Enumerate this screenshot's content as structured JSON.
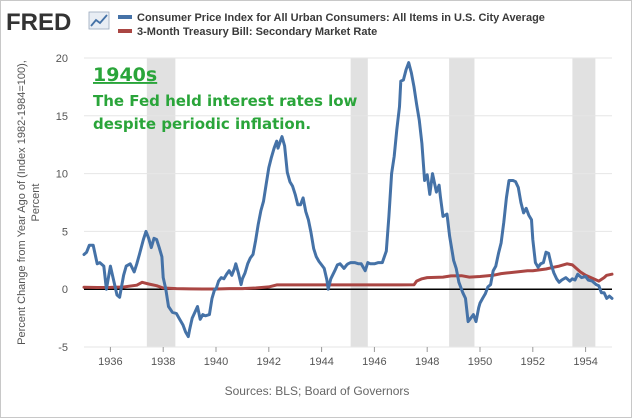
{
  "header": {
    "logo_text": "FRED",
    "logo_icon": "line-chart-icon"
  },
  "chart_data": {
    "type": "line",
    "title": "",
    "xlabel": "",
    "ylabel_lines": [
      "Percent Change from Year Ago of (Index 1982-1984=100),",
      "Percent"
    ],
    "xlim": [
      1935.0,
      1955.0
    ],
    "ylim": [
      -5,
      20
    ],
    "y_ticks": [
      -5,
      0,
      5,
      10,
      15,
      20
    ],
    "x_ticks": [
      {
        "value": 1936,
        "label": "1936"
      },
      {
        "value": 1938,
        "label": "1938"
      },
      {
        "value": 1940,
        "label": "1940"
      },
      {
        "value": 1942,
        "label": "1942"
      },
      {
        "value": 1944,
        "label": "1944"
      },
      {
        "value": 1946,
        "label": "1946"
      },
      {
        "value": 1948,
        "label": "1948"
      },
      {
        "value": 1950,
        "label": "1950"
      },
      {
        "value": 1952,
        "label": "1952"
      },
      {
        "value": 1954,
        "label": "1954"
      }
    ],
    "grid": true,
    "recessions": [
      [
        1937.38,
        1938.46
      ],
      [
        1945.1,
        1945.75
      ],
      [
        1948.83,
        1949.79
      ],
      [
        1953.5,
        1954.37
      ]
    ],
    "zero_line": 0,
    "series": [
      {
        "name": "Consumer Price Index for All Urban Consumers: All Items in U.S. City Average",
        "color": "#4572a7",
        "points": [
          [
            1935.0,
            3.0
          ],
          [
            1935.1,
            3.2
          ],
          [
            1935.2,
            3.8
          ],
          [
            1935.35,
            3.8
          ],
          [
            1935.5,
            2.2
          ],
          [
            1935.6,
            2.3
          ],
          [
            1935.75,
            2.0
          ],
          [
            1935.85,
            0.0
          ],
          [
            1936.0,
            2.0
          ],
          [
            1936.1,
            1.0
          ],
          [
            1936.25,
            -0.5
          ],
          [
            1936.35,
            -0.7
          ],
          [
            1936.5,
            1.2
          ],
          [
            1936.6,
            2.0
          ],
          [
            1936.75,
            2.2
          ],
          [
            1936.9,
            1.5
          ],
          [
            1937.0,
            2.2
          ],
          [
            1937.1,
            3.0
          ],
          [
            1937.25,
            4.3
          ],
          [
            1937.35,
            5.0
          ],
          [
            1937.45,
            4.4
          ],
          [
            1937.55,
            3.6
          ],
          [
            1937.65,
            4.4
          ],
          [
            1937.75,
            4.3
          ],
          [
            1937.85,
            3.6
          ],
          [
            1937.95,
            2.8
          ],
          [
            1938.0,
            1.0
          ],
          [
            1938.1,
            0.0
          ],
          [
            1938.2,
            -1.5
          ],
          [
            1938.35,
            -2.0
          ],
          [
            1938.5,
            -2.1
          ],
          [
            1938.6,
            -2.5
          ],
          [
            1938.75,
            -3.1
          ],
          [
            1938.85,
            -3.7
          ],
          [
            1938.95,
            -4.1
          ],
          [
            1939.0,
            -3.5
          ],
          [
            1939.1,
            -2.5
          ],
          [
            1939.2,
            -2.0
          ],
          [
            1939.3,
            -1.5
          ],
          [
            1939.4,
            -2.6
          ],
          [
            1939.5,
            -2.2
          ],
          [
            1939.6,
            -2.3
          ],
          [
            1939.75,
            -2.2
          ],
          [
            1939.85,
            -0.8
          ],
          [
            1939.95,
            0.0
          ],
          [
            1940.0,
            0.0
          ],
          [
            1940.1,
            0.7
          ],
          [
            1940.2,
            1.0
          ],
          [
            1940.3,
            0.9
          ],
          [
            1940.4,
            1.3
          ],
          [
            1940.5,
            1.6
          ],
          [
            1940.6,
            1.2
          ],
          [
            1940.7,
            1.8
          ],
          [
            1940.75,
            2.2
          ],
          [
            1940.85,
            1.4
          ],
          [
            1940.95,
            0.4
          ],
          [
            1941.0,
            0.9
          ],
          [
            1941.1,
            1.4
          ],
          [
            1941.2,
            2.2
          ],
          [
            1941.3,
            2.7
          ],
          [
            1941.4,
            3.0
          ],
          [
            1941.5,
            4.2
          ],
          [
            1941.6,
            5.6
          ],
          [
            1941.7,
            6.8
          ],
          [
            1941.8,
            7.6
          ],
          [
            1941.9,
            9.1
          ],
          [
            1942.0,
            10.5
          ],
          [
            1942.1,
            11.4
          ],
          [
            1942.2,
            12.2
          ],
          [
            1942.3,
            12.8
          ],
          [
            1942.35,
            12.2
          ],
          [
            1942.45,
            12.9
          ],
          [
            1942.5,
            13.2
          ],
          [
            1942.6,
            12.4
          ],
          [
            1942.7,
            10.1
          ],
          [
            1942.8,
            9.3
          ],
          [
            1942.9,
            8.9
          ],
          [
            1943.0,
            8.2
          ],
          [
            1943.1,
            7.3
          ],
          [
            1943.2,
            7.3
          ],
          [
            1943.3,
            7.9
          ],
          [
            1943.4,
            6.7
          ],
          [
            1943.5,
            6.0
          ],
          [
            1943.6,
            4.9
          ],
          [
            1943.7,
            3.5
          ],
          [
            1943.8,
            2.8
          ],
          [
            1943.9,
            2.4
          ],
          [
            1944.0,
            2.1
          ],
          [
            1944.1,
            1.8
          ],
          [
            1944.2,
            0.8
          ],
          [
            1944.25,
            0.0
          ],
          [
            1944.35,
            0.9
          ],
          [
            1944.5,
            1.6
          ],
          [
            1944.6,
            2.1
          ],
          [
            1944.7,
            2.2
          ],
          [
            1944.85,
            1.8
          ],
          [
            1944.95,
            2.1
          ],
          [
            1945.0,
            2.2
          ],
          [
            1945.1,
            2.3
          ],
          [
            1945.25,
            2.3
          ],
          [
            1945.4,
            2.2
          ],
          [
            1945.5,
            2.2
          ],
          [
            1945.65,
            1.6
          ],
          [
            1945.75,
            2.3
          ],
          [
            1945.85,
            2.2
          ],
          [
            1946.0,
            2.2
          ],
          [
            1946.15,
            2.3
          ],
          [
            1946.3,
            2.3
          ],
          [
            1946.45,
            3.3
          ],
          [
            1946.55,
            6.3
          ],
          [
            1946.65,
            10.0
          ],
          [
            1946.75,
            11.5
          ],
          [
            1946.85,
            13.8
          ],
          [
            1946.95,
            15.8
          ],
          [
            1947.0,
            18.0
          ],
          [
            1947.1,
            18.1
          ],
          [
            1947.2,
            19.0
          ],
          [
            1947.3,
            19.6
          ],
          [
            1947.4,
            18.7
          ],
          [
            1947.5,
            17.5
          ],
          [
            1947.6,
            16.0
          ],
          [
            1947.7,
            14.6
          ],
          [
            1947.8,
            12.6
          ],
          [
            1947.9,
            9.4
          ],
          [
            1948.0,
            9.9
          ],
          [
            1948.1,
            8.2
          ],
          [
            1948.2,
            10.0
          ],
          [
            1948.35,
            8.4
          ],
          [
            1948.45,
            9.0
          ],
          [
            1948.5,
            8.0
          ],
          [
            1948.6,
            6.3
          ],
          [
            1948.75,
            6.5
          ],
          [
            1948.85,
            4.6
          ],
          [
            1948.95,
            3.2
          ],
          [
            1949.0,
            2.5
          ],
          [
            1949.1,
            1.8
          ],
          [
            1949.2,
            0.6
          ],
          [
            1949.35,
            -0.3
          ],
          [
            1949.45,
            -0.8
          ],
          [
            1949.55,
            -2.8
          ],
          [
            1949.65,
            -2.5
          ],
          [
            1949.75,
            -2.2
          ],
          [
            1949.85,
            -2.8
          ],
          [
            1949.95,
            -1.6
          ],
          [
            1950.0,
            -1.2
          ],
          [
            1950.1,
            -0.8
          ],
          [
            1950.2,
            -0.4
          ],
          [
            1950.3,
            0.2
          ],
          [
            1950.4,
            0.4
          ],
          [
            1950.5,
            1.6
          ],
          [
            1950.6,
            2.0
          ],
          [
            1950.7,
            3.1
          ],
          [
            1950.8,
            4.0
          ],
          [
            1950.9,
            5.8
          ],
          [
            1951.0,
            7.9
          ],
          [
            1951.1,
            9.4
          ],
          [
            1951.25,
            9.4
          ],
          [
            1951.35,
            9.3
          ],
          [
            1951.45,
            8.8
          ],
          [
            1951.55,
            7.5
          ],
          [
            1951.65,
            6.6
          ],
          [
            1951.75,
            7.0
          ],
          [
            1951.85,
            6.4
          ],
          [
            1951.95,
            6.0
          ],
          [
            1952.0,
            4.3
          ],
          [
            1952.1,
            2.3
          ],
          [
            1952.2,
            1.9
          ],
          [
            1952.3,
            2.2
          ],
          [
            1952.4,
            2.3
          ],
          [
            1952.5,
            3.2
          ],
          [
            1952.6,
            3.1
          ],
          [
            1952.7,
            2.1
          ],
          [
            1952.8,
            1.4
          ],
          [
            1952.9,
            0.9
          ],
          [
            1953.0,
            0.6
          ],
          [
            1953.1,
            0.8
          ],
          [
            1953.25,
            1.0
          ],
          [
            1953.4,
            0.7
          ],
          [
            1953.5,
            0.9
          ],
          [
            1953.6,
            0.8
          ],
          [
            1953.7,
            1.3
          ],
          [
            1953.85,
            1.0
          ],
          [
            1954.0,
            1.1
          ],
          [
            1954.1,
            0.8
          ],
          [
            1954.25,
            0.7
          ],
          [
            1954.4,
            0.4
          ],
          [
            1954.5,
            0.3
          ],
          [
            1954.6,
            -0.3
          ],
          [
            1954.7,
            -0.3
          ],
          [
            1954.8,
            -0.8
          ],
          [
            1954.9,
            -0.6
          ],
          [
            1955.0,
            -0.8
          ]
        ]
      },
      {
        "name": "3-Month Treasury Bill: Secondary Market Rate",
        "color": "#aa4643",
        "points": [
          [
            1935.0,
            0.17
          ],
          [
            1935.5,
            0.15
          ],
          [
            1936.0,
            0.16
          ],
          [
            1936.5,
            0.19
          ],
          [
            1937.0,
            0.35
          ],
          [
            1937.2,
            0.6
          ],
          [
            1937.45,
            0.45
          ],
          [
            1937.75,
            0.3
          ],
          [
            1938.0,
            0.1
          ],
          [
            1938.5,
            0.05
          ],
          [
            1939.0,
            0.03
          ],
          [
            1939.5,
            0.02
          ],
          [
            1940.0,
            0.02
          ],
          [
            1940.5,
            0.05
          ],
          [
            1941.0,
            0.05
          ],
          [
            1941.5,
            0.1
          ],
          [
            1942.0,
            0.2
          ],
          [
            1942.3,
            0.37
          ],
          [
            1943.0,
            0.375
          ],
          [
            1944.0,
            0.375
          ],
          [
            1945.0,
            0.375
          ],
          [
            1946.0,
            0.375
          ],
          [
            1947.0,
            0.375
          ],
          [
            1947.5,
            0.38
          ],
          [
            1947.6,
            0.7
          ],
          [
            1947.8,
            0.9
          ],
          [
            1948.0,
            1.0
          ],
          [
            1948.6,
            1.05
          ],
          [
            1948.9,
            1.15
          ],
          [
            1949.3,
            1.17
          ],
          [
            1949.6,
            1.05
          ],
          [
            1950.0,
            1.1
          ],
          [
            1950.5,
            1.2
          ],
          [
            1950.8,
            1.35
          ],
          [
            1951.0,
            1.4
          ],
          [
            1951.5,
            1.52
          ],
          [
            1951.8,
            1.6
          ],
          [
            1952.0,
            1.6
          ],
          [
            1952.5,
            1.75
          ],
          [
            1952.8,
            1.9
          ],
          [
            1953.0,
            2.0
          ],
          [
            1953.3,
            2.2
          ],
          [
            1953.5,
            2.1
          ],
          [
            1953.8,
            1.5
          ],
          [
            1954.0,
            1.2
          ],
          [
            1954.3,
            0.9
          ],
          [
            1954.5,
            0.7
          ],
          [
            1954.7,
            1.0
          ],
          [
            1954.8,
            1.2
          ],
          [
            1955.0,
            1.3
          ]
        ]
      }
    ],
    "annotations": [
      {
        "kind": "title",
        "text": "1940s"
      },
      {
        "kind": "body",
        "text": "The Fed held interest rates low"
      },
      {
        "kind": "body",
        "text": "despite periodic inflation."
      }
    ],
    "source": "Sources: BLS; Board of Governors"
  }
}
